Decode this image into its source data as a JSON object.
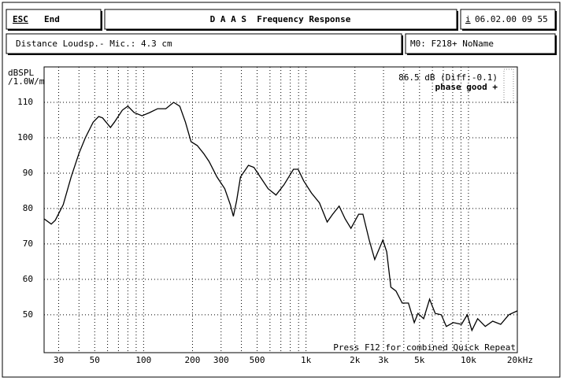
{
  "header": {
    "esc": "ESC",
    "end": "End",
    "title": "D A A S  Frequency Response",
    "info_key": "i",
    "datetime": "06.02.00 09 55",
    "distance": "Distance Loudsp.- Mic.: 4.3 cm",
    "device": "M0: F218+ NoName"
  },
  "chart_data": {
    "type": "line",
    "y_label_lines": [
      "dBSPL",
      "/1.0W/m"
    ],
    "annotations": [
      "86.5 dB (Diff:-0.1)",
      "phase good +",
      "Press F12 for combined Quick Repeat"
    ],
    "x": [
      24.4,
      27,
      28.6,
      32,
      35.8,
      40,
      43.8,
      48.9,
      52.9,
      55.9,
      62.5,
      66.1,
      74,
      80,
      87.4,
      97.8,
      109,
      122,
      137,
      153,
      167,
      181,
      196,
      214,
      234,
      253,
      283,
      316,
      342,
      357,
      374,
      395,
      442,
      478,
      523,
      584,
      653,
      731,
      837,
      894,
      968,
      1080,
      1210,
      1350,
      1460,
      1600,
      1740,
      1890,
      2110,
      2240,
      2450,
      2650,
      2970,
      3140,
      3330,
      3580,
      3910,
      4270,
      4640,
      4890,
      5300,
      5770,
      6240,
      6810,
      7310,
      8070,
      9060,
      9830,
      10500,
      11400,
      12700,
      14100,
      15800,
      17700,
      20000
    ],
    "series": [
      {
        "name": "Frequency Response",
        "color": "#000000",
        "values": [
          77.1,
          75.6,
          76.7,
          81.1,
          88.9,
          95.6,
          100,
          104.4,
          106,
          105.6,
          102.9,
          104.4,
          107.8,
          108.9,
          107.1,
          106.2,
          107.1,
          108.2,
          108.2,
          110,
          108.9,
          104.4,
          98.9,
          97.8,
          95.6,
          93.3,
          88.9,
          85.6,
          81.1,
          77.8,
          82.2,
          88.9,
          92.2,
          91.6,
          88.9,
          85.6,
          83.8,
          86.7,
          91.1,
          91.1,
          87.8,
          84.4,
          81.6,
          76.2,
          78.4,
          80.7,
          77.1,
          74.4,
          78.4,
          78.4,
          71.1,
          65.6,
          71.1,
          67.8,
          57.8,
          56.7,
          53.3,
          53.3,
          47.8,
          50.4,
          48.9,
          54.4,
          50.4,
          50,
          46.7,
          47.8,
          47.3,
          50,
          45.6,
          48.9,
          46.7,
          48.2,
          47.3,
          50,
          51.1
        ]
      }
    ],
    "xscale": "log",
    "xlim": [
      24.4,
      20000
    ],
    "ylim": [
      39.3,
      120
    ],
    "xticks": [
      30,
      50,
      100,
      200,
      300,
      500,
      {
        "value": 1000,
        "label": "1k"
      },
      {
        "value": 2000,
        "label": "2k"
      },
      {
        "value": 3000,
        "label": "3k"
      },
      {
        "value": 5000,
        "label": "5k"
      },
      {
        "value": 10000,
        "label": "10k"
      },
      {
        "value": 20000,
        "label": "20kHz"
      }
    ],
    "x_minor_grid": [
      40,
      60,
      70,
      80,
      90,
      400,
      600,
      700,
      800,
      900,
      4000,
      6000,
      7000,
      8000,
      9000
    ],
    "yticks": [
      50,
      60,
      70,
      80,
      90,
      100,
      110
    ],
    "grid": true
  }
}
